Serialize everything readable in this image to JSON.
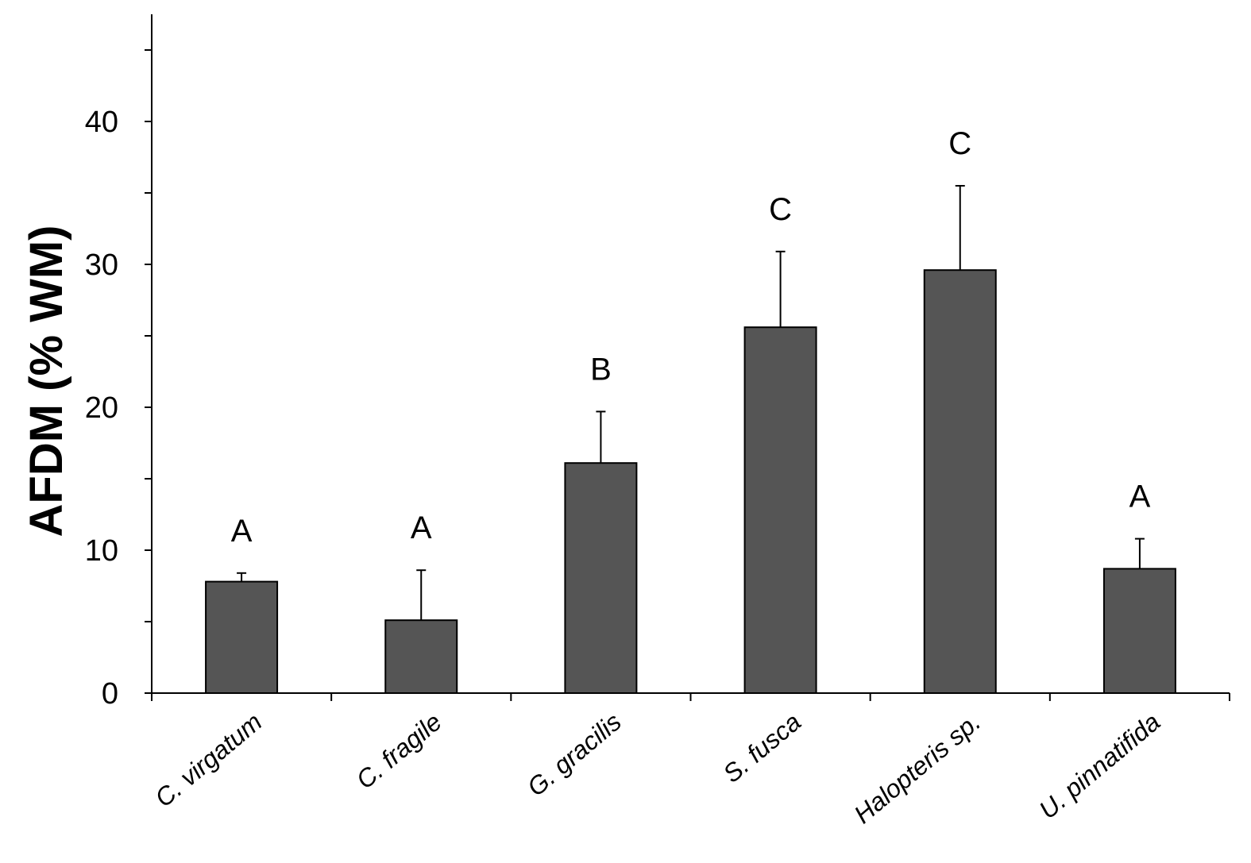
{
  "chart_data": {
    "type": "bar",
    "title": "",
    "xlabel": "",
    "ylabel": "AFDM (% WM)",
    "ylim": [
      0,
      47.5
    ],
    "yticks": [
      0,
      10,
      20,
      30,
      40
    ],
    "grid": false,
    "categories": [
      "C. virgatum",
      "C. fragile",
      "G. gracilis",
      "S. fusca",
      "Halopteris sp.",
      "U. pinnatifida"
    ],
    "values": [
      7.8,
      5.1,
      16.1,
      25.6,
      29.6,
      8.7
    ],
    "errors": [
      0.6,
      3.5,
      3.6,
      5.3,
      5.9,
      2.1
    ],
    "significance_letters": [
      "A",
      "A",
      "B",
      "C",
      "C",
      "A"
    ],
    "bar_color": "#555555"
  }
}
